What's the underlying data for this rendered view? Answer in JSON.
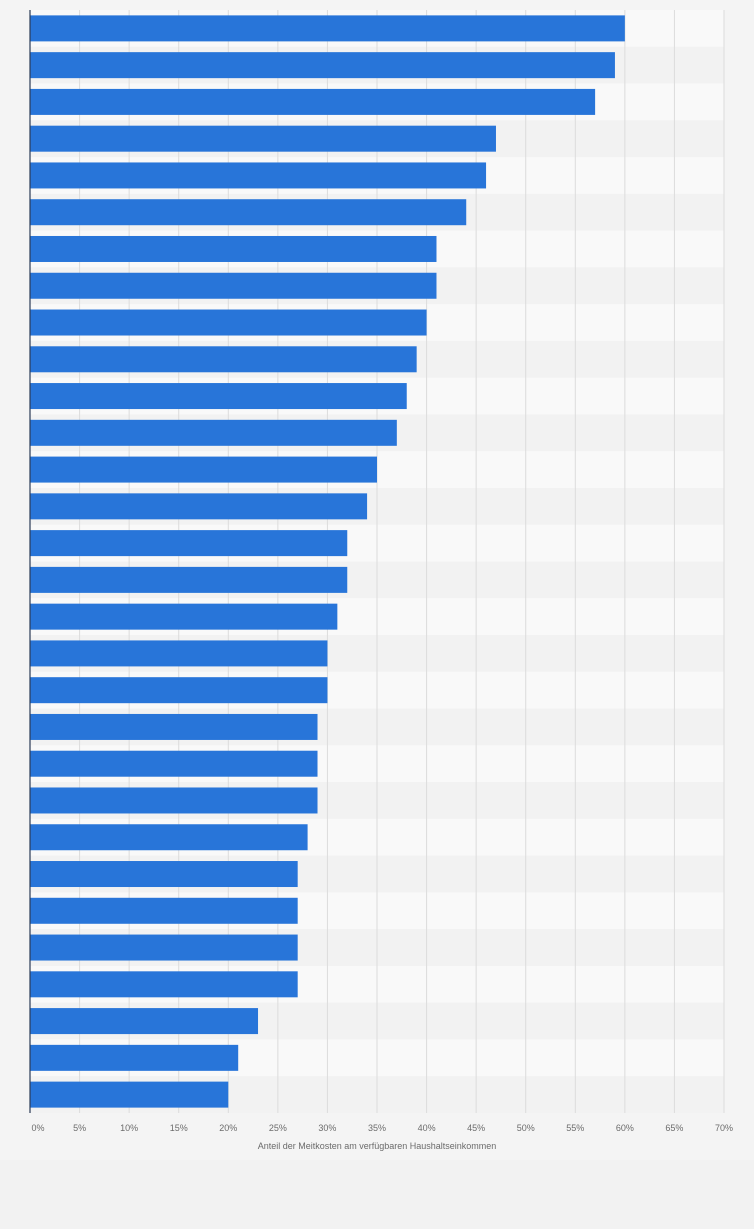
{
  "chart_data": {
    "type": "bar",
    "orientation": "horizontal",
    "title": "",
    "xlabel": "Anteil der Meitkosten am verfügbaren Haushaltseinkommen",
    "ylabel": "",
    "xlim": [
      0,
      70
    ],
    "x_tick_labels": [
      "0%",
      "5%",
      "10%",
      "15%",
      "20%",
      "25%",
      "30%",
      "35%",
      "40%",
      "45%",
      "50%",
      "55%",
      "60%",
      "65%",
      "70%"
    ],
    "grid": true,
    "values": [
      60,
      59,
      57,
      47,
      46,
      44,
      41,
      41,
      40,
      39,
      38,
      37,
      35,
      34,
      32,
      32,
      31,
      30,
      30,
      29,
      29,
      29,
      28,
      27,
      27,
      27,
      27,
      23,
      21,
      20
    ],
    "bar_color": "#2875d9"
  },
  "colors": {
    "band_light": "#f9f9f9",
    "band_dark": "#f2f2f2",
    "grid": "#dcdcdc",
    "axis": "#2b3a55",
    "tick_text": "#6b6b6b"
  }
}
